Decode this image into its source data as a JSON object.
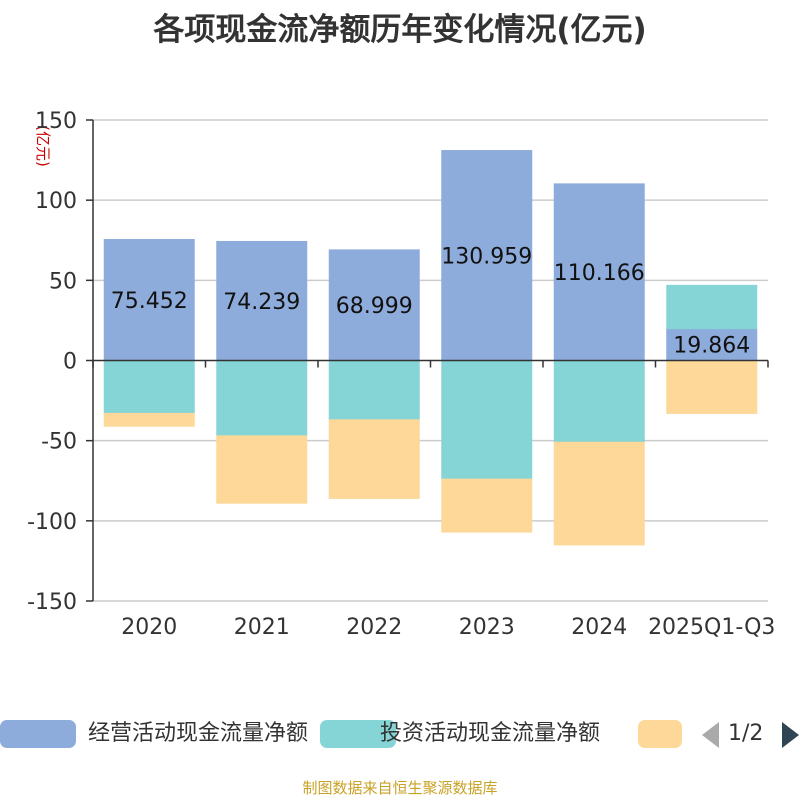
{
  "title": "各项现金流净额历年变化情况(亿元)",
  "source": "制图数据来自恒生聚源数据库",
  "legend": {
    "page": "1/2",
    "items": [
      {
        "label": "经营活动现金流量净额",
        "color": "#8eacdb"
      },
      {
        "label": "投资活动现金流量净额",
        "color": "#85d5d7"
      },
      {
        "label": "",
        "color": "#fdd898"
      }
    ]
  },
  "chart_data": {
    "type": "bar",
    "stacked": true,
    "title": "各项现金流净额历年变化情况(亿元)",
    "ylabel": "(亿元)",
    "xlabel": "",
    "ylim": [
      -150,
      150
    ],
    "yticks": [
      150,
      100,
      50,
      0,
      -50,
      -100,
      -150
    ],
    "grid": true,
    "legend_position": "bottom",
    "categories": [
      "2020",
      "2021",
      "2022",
      "2023",
      "2024",
      "2025Q1-Q3"
    ],
    "series": [
      {
        "name": "经营活动现金流量净额",
        "color": "#8eacdb",
        "values": [
          75.452,
          74.239,
          68.999,
          130.959,
          110.166,
          19.864
        ],
        "labels": [
          "75.452",
          "74.239",
          "68.999",
          "130.959",
          "110.166",
          "19.864"
        ]
      },
      {
        "color": "#85d5d7",
        "values": [
          -33,
          -47,
          -37,
          -74,
          -51,
          27
        ]
      },
      {
        "color": "#fdd898",
        "values": [
          -8,
          -42,
          -49,
          -33,
          -64,
          -33
        ]
      }
    ]
  }
}
